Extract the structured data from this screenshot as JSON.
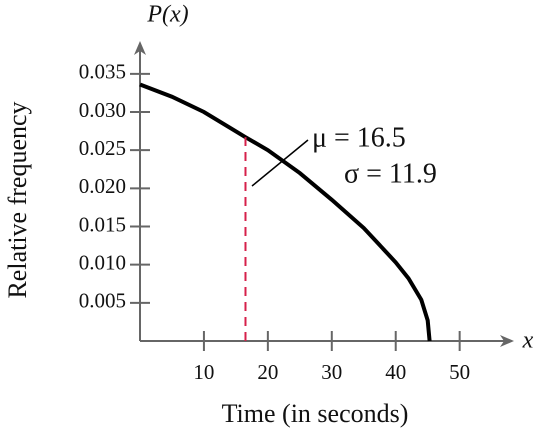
{
  "chart_data": {
    "type": "line",
    "x_label": "Time (in seconds)",
    "y_label": "Relative frequency",
    "y_axis_symbol": "P(x)",
    "x_axis_symbol": "x",
    "annotations": [
      "μ = 16.5",
      "σ = 11.9"
    ],
    "mean_line_x": 16.5,
    "x": [
      0,
      5,
      10,
      16.5,
      20,
      25,
      30,
      35,
      40,
      42,
      44,
      45,
      45.3
    ],
    "series": [
      {
        "color": "#000000",
        "values": [
          0.0336,
          0.032,
          0.03,
          0.0267,
          0.025,
          0.022,
          0.0185,
          0.0148,
          0.0103,
          0.0082,
          0.0054,
          0.0027,
          0
        ]
      }
    ],
    "mean_line_color": "#d6204a",
    "xlim": [
      0,
      58.5
    ],
    "ylim": [
      0,
      0.0393
    ],
    "xticks": [
      10,
      20,
      30,
      40,
      50
    ],
    "yticks": [
      0.005,
      {
        "value": 0.01,
        "label": "0.010"
      },
      0.015,
      {
        "value": 0.02,
        "label": "0.020"
      },
      0.025,
      {
        "value": 0.03,
        "label": "0.030"
      },
      0.035
    ]
  }
}
